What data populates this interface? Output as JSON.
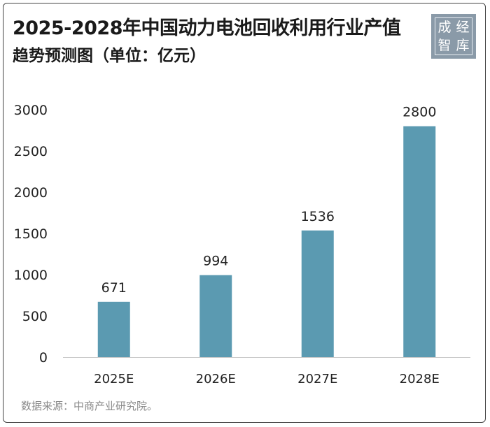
{
  "title_line1": "2025-2028年中国动力电池回收利用行业产值",
  "title_line2": "趋势预测图（单位：亿元）",
  "logo": {
    "chars": [
      "成",
      "经",
      "智",
      "库"
    ],
    "bg_color": "#8a9aa8"
  },
  "footer": "数据来源：中商产业研究院。",
  "chart_data": {
    "type": "bar",
    "categories": [
      "2025E",
      "2026E",
      "2027E",
      "2028E"
    ],
    "values": [
      671,
      994,
      1536,
      2800
    ],
    "data_labels": [
      "671",
      "994",
      "1536",
      "2800"
    ],
    "yticks": [
      0,
      500,
      1000,
      1500,
      2000,
      2500,
      3000
    ],
    "ylim": [
      0,
      3000
    ],
    "bar_color": "#5b9ab1",
    "title": "2025-2028年中国动力电池回收利用行业产值趋势预测图（单位：亿元）",
    "xlabel": "",
    "ylabel": "",
    "grid": false,
    "legend": "none"
  }
}
